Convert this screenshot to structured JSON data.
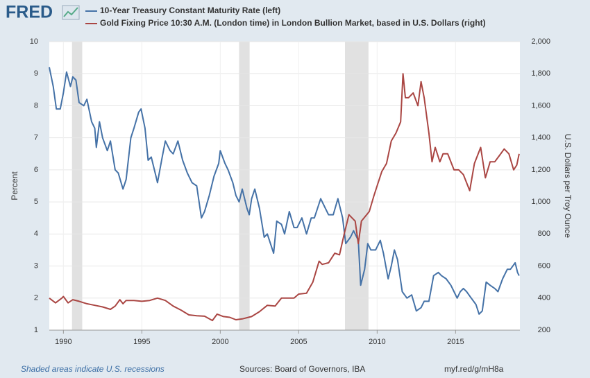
{
  "logo": "FRED",
  "chart_data": {
    "type": "line",
    "y_label": "Percent",
    "y2_label": "U.S. Dollars per Troy Ounce",
    "xlim": [
      1989.1,
      2019.1
    ],
    "xticks": [
      1990,
      1995,
      2000,
      2005,
      2010,
      2015
    ],
    "ylim": [
      1,
      10
    ],
    "yticks": [
      1,
      2,
      3,
      4,
      5,
      6,
      7,
      8,
      9,
      10
    ],
    "y2lim": [
      200,
      2000
    ],
    "y2ticks": [
      200,
      400,
      600,
      800,
      {
        "value": 1000,
        "label": "1,000"
      },
      {
        "value": 1200,
        "label": "1,200"
      },
      {
        "value": 1400,
        "label": "1,400"
      },
      {
        "value": 1600,
        "label": "1,600"
      },
      {
        "value": 1800,
        "label": "1,800"
      },
      {
        "value": 2000,
        "label": "2,000"
      }
    ],
    "grid": true,
    "recessions": [
      [
        1990.55,
        1991.2
      ],
      [
        2001.2,
        2001.87
      ],
      [
        2007.95,
        2009.45
      ]
    ],
    "recession_color": "#e1e1e1",
    "series": [
      {
        "name": "10-Year Treasury Constant Maturity Rate (left)",
        "color": "#4572a7",
        "axis": "y",
        "x": [
          1989.1,
          1989.35,
          1989.55,
          1989.8,
          1990.0,
          1990.2,
          1990.45,
          1990.6,
          1990.8,
          1991.0,
          1991.3,
          1991.5,
          1991.8,
          1992.0,
          1992.1,
          1992.3,
          1992.5,
          1992.8,
          1993.0,
          1993.3,
          1993.5,
          1993.8,
          1994.0,
          1994.3,
          1994.5,
          1994.8,
          1994.95,
          1995.2,
          1995.4,
          1995.6,
          1995.9,
          1996.0,
          1996.3,
          1996.5,
          1996.8,
          1997.0,
          1997.3,
          1997.6,
          1997.9,
          1998.2,
          1998.5,
          1998.8,
          1999.0,
          1999.3,
          1999.6,
          1999.9,
          2000.0,
          2000.3,
          2000.5,
          2000.8,
          2001.0,
          2001.2,
          2001.4,
          2001.7,
          2001.85,
          2002.0,
          2002.2,
          2002.5,
          2002.8,
          2003.0,
          2003.4,
          2003.6,
          2003.9,
          2004.1,
          2004.4,
          2004.7,
          2004.9,
          2005.2,
          2005.5,
          2005.8,
          2006.0,
          2006.4,
          2006.7,
          2006.9,
          2007.2,
          2007.5,
          2007.8,
          2008.0,
          2008.3,
          2008.5,
          2008.8,
          2008.95,
          2009.2,
          2009.4,
          2009.6,
          2009.9,
          2010.2,
          2010.4,
          2010.7,
          2010.9,
          2011.1,
          2011.3,
          2011.6,
          2011.9,
          2012.2,
          2012.5,
          2012.8,
          2013.0,
          2013.3,
          2013.6,
          2013.9,
          2014.1,
          2014.4,
          2014.7,
          2014.9,
          2015.1,
          2015.3,
          2015.5,
          2015.7,
          2016.0,
          2016.3,
          2016.5,
          2016.7,
          2016.95,
          2017.2,
          2017.5,
          2017.7,
          2018.0,
          2018.3,
          2018.5,
          2018.8,
          2018.95,
          2019.05
        ],
        "values": [
          9.2,
          8.6,
          7.9,
          7.9,
          8.4,
          9.05,
          8.6,
          8.9,
          8.8,
          8.1,
          8.0,
          8.2,
          7.5,
          7.3,
          6.7,
          7.5,
          7.0,
          6.6,
          6.9,
          6.0,
          5.9,
          5.4,
          5.7,
          7.0,
          7.3,
          7.8,
          7.9,
          7.3,
          6.3,
          6.4,
          5.8,
          5.6,
          6.4,
          6.9,
          6.6,
          6.5,
          6.9,
          6.3,
          5.9,
          5.6,
          5.5,
          4.5,
          4.7,
          5.2,
          5.8,
          6.2,
          6.6,
          6.2,
          6.0,
          5.6,
          5.2,
          5.0,
          5.4,
          4.8,
          4.6,
          5.1,
          5.4,
          4.8,
          3.9,
          4.0,
          3.4,
          4.4,
          4.3,
          4.0,
          4.7,
          4.2,
          4.2,
          4.5,
          4.0,
          4.5,
          4.5,
          5.1,
          4.8,
          4.6,
          4.6,
          5.1,
          4.5,
          3.7,
          3.9,
          4.1,
          3.8,
          2.4,
          2.9,
          3.7,
          3.5,
          3.5,
          3.8,
          3.4,
          2.6,
          3.0,
          3.5,
          3.2,
          2.2,
          2.0,
          2.1,
          1.6,
          1.7,
          1.9,
          1.9,
          2.7,
          2.8,
          2.7,
          2.6,
          2.4,
          2.2,
          2.0,
          2.2,
          2.3,
          2.2,
          2.0,
          1.8,
          1.5,
          1.6,
          2.5,
          2.4,
          2.3,
          2.2,
          2.6,
          2.9,
          2.9,
          3.1,
          2.8,
          2.7
        ]
      },
      {
        "name": "Gold Fixing Price 10:30 A.M. (London time) in London Bullion Market, based in U.S. Dollars (right)",
        "color": "#aa4643",
        "axis": "y2",
        "x": [
          1989.1,
          1989.5,
          1989.9,
          1990.0,
          1990.3,
          1990.6,
          1991.0,
          1991.5,
          1992.0,
          1992.5,
          1993.0,
          1993.3,
          1993.6,
          1993.8,
          1994.0,
          1994.5,
          1995.0,
          1995.5,
          1996.0,
          1996.5,
          1997.0,
          1997.5,
          1998.0,
          1998.5,
          1999.0,
          1999.5,
          1999.8,
          2000.2,
          2000.6,
          2001.0,
          2001.4,
          2001.8,
          2002.0,
          2002.5,
          2003.0,
          2003.5,
          2003.9,
          2004.3,
          2004.7,
          2005.0,
          2005.5,
          2005.9,
          2006.3,
          2006.5,
          2006.9,
          2007.3,
          2007.6,
          2007.9,
          2008.2,
          2008.6,
          2008.8,
          2009.0,
          2009.5,
          2009.8,
          2010.0,
          2010.3,
          2010.6,
          2010.9,
          2011.2,
          2011.5,
          2011.65,
          2011.8,
          2012.0,
          2012.3,
          2012.6,
          2012.8,
          2013.0,
          2013.3,
          2013.5,
          2013.7,
          2014.0,
          2014.2,
          2014.5,
          2014.9,
          2015.2,
          2015.5,
          2015.9,
          2016.2,
          2016.6,
          2016.9,
          2017.2,
          2017.5,
          2017.8,
          2018.1,
          2018.4,
          2018.7,
          2018.9,
          2019.05
        ],
        "values": [
          400,
          370,
          400,
          410,
          370,
          390,
          380,
          365,
          355,
          345,
          330,
          350,
          390,
          365,
          385,
          385,
          380,
          385,
          400,
          385,
          350,
          325,
          295,
          290,
          287,
          260,
          300,
          285,
          280,
          265,
          270,
          280,
          285,
          315,
          355,
          350,
          400,
          400,
          400,
          425,
          430,
          500,
          630,
          610,
          620,
          680,
          670,
          800,
          920,
          880,
          740,
          880,
          940,
          1040,
          1100,
          1190,
          1240,
          1380,
          1430,
          1500,
          1800,
          1650,
          1650,
          1680,
          1600,
          1750,
          1650,
          1430,
          1250,
          1340,
          1250,
          1300,
          1300,
          1200,
          1200,
          1170,
          1070,
          1240,
          1340,
          1150,
          1250,
          1250,
          1290,
          1330,
          1300,
          1200,
          1230,
          1300
        ]
      }
    ]
  },
  "footer": {
    "note": "Shaded areas indicate U.S. recessions",
    "sources": "Sources: Board of Governors, IBA",
    "link": "myf.red/g/mH8a"
  }
}
